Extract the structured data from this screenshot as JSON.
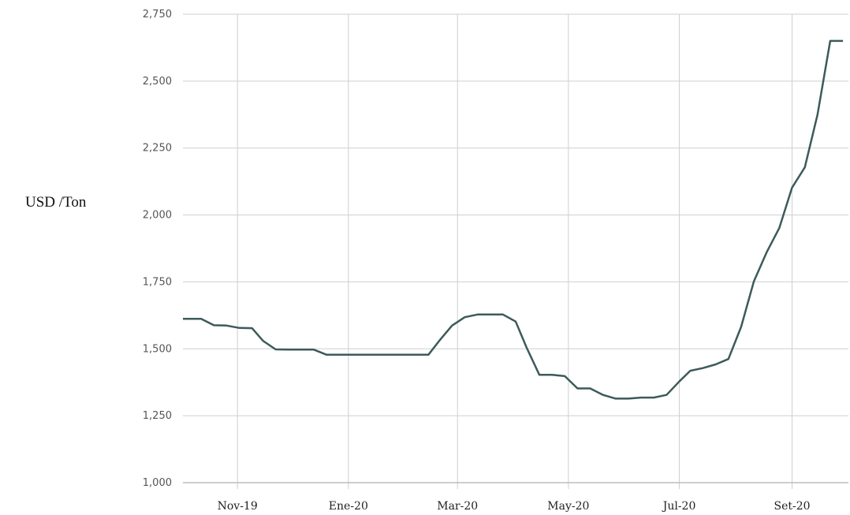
{
  "chart_data": {
    "type": "line",
    "ylabel": "USD /Ton",
    "xlabel": "",
    "title": "",
    "ylim": [
      1000,
      2750
    ],
    "yticks": [
      1000,
      1250,
      1500,
      1750,
      2000,
      2250,
      2500,
      2750
    ],
    "ytick_labels": [
      "1,000",
      "1,250",
      "1,500",
      "1,750",
      "2,000",
      "2,250",
      "2,500",
      "2,750"
    ],
    "xlim": [
      "2019-10-02",
      "2020-10-02"
    ],
    "xticks": [
      {
        "date": "2019-11-01",
        "label": "Nov-19"
      },
      {
        "date": "2020-01-01",
        "label": "Ene-20"
      },
      {
        "date": "2020-03-01",
        "label": "Mar-20"
      },
      {
        "date": "2020-05-01",
        "label": "May-20"
      },
      {
        "date": "2020-07-01",
        "label": "Jul-20"
      },
      {
        "date": "2020-09-01",
        "label": "Set-20"
      }
    ],
    "grid": true,
    "line_color": "#3d5a5a",
    "series": [
      {
        "points": [
          [
            "2019-10-02",
            1612
          ],
          [
            "2019-10-12",
            1612
          ],
          [
            "2019-10-19",
            1588
          ],
          [
            "2019-10-26",
            1587
          ],
          [
            "2019-11-02",
            1578
          ],
          [
            "2019-11-09",
            1577
          ],
          [
            "2019-11-15",
            1530
          ],
          [
            "2019-11-22",
            1498
          ],
          [
            "2019-11-29",
            1497
          ],
          [
            "2019-12-06",
            1497
          ],
          [
            "2019-12-13",
            1497
          ],
          [
            "2019-12-20",
            1478
          ],
          [
            "2019-12-27",
            1478
          ],
          [
            "2020-01-03",
            1478
          ],
          [
            "2020-01-10",
            1478
          ],
          [
            "2020-01-17",
            1478
          ],
          [
            "2020-01-24",
            1478
          ],
          [
            "2020-01-31",
            1478
          ],
          [
            "2020-02-07",
            1478
          ],
          [
            "2020-02-14",
            1478
          ],
          [
            "2020-02-20",
            1530
          ],
          [
            "2020-02-27",
            1587
          ],
          [
            "2020-03-05",
            1618
          ],
          [
            "2020-03-12",
            1628
          ],
          [
            "2020-03-19",
            1628
          ],
          [
            "2020-03-26",
            1628
          ],
          [
            "2020-04-02",
            1602
          ],
          [
            "2020-04-08",
            1505
          ],
          [
            "2020-04-15",
            1403
          ],
          [
            "2020-04-22",
            1403
          ],
          [
            "2020-04-29",
            1398
          ],
          [
            "2020-05-06",
            1352
          ],
          [
            "2020-05-13",
            1352
          ],
          [
            "2020-05-20",
            1328
          ],
          [
            "2020-05-27",
            1314
          ],
          [
            "2020-06-03",
            1314
          ],
          [
            "2020-06-10",
            1318
          ],
          [
            "2020-06-17",
            1318
          ],
          [
            "2020-06-24",
            1328
          ],
          [
            "2020-07-01",
            1378
          ],
          [
            "2020-07-07",
            1418
          ],
          [
            "2020-07-14",
            1428
          ],
          [
            "2020-07-21",
            1442
          ],
          [
            "2020-07-28",
            1462
          ],
          [
            "2020-08-04",
            1582
          ],
          [
            "2020-08-11",
            1752
          ],
          [
            "2020-08-18",
            1860
          ],
          [
            "2020-08-25",
            1952
          ],
          [
            "2020-09-01",
            2102
          ],
          [
            "2020-09-08",
            2178
          ],
          [
            "2020-09-15",
            2375
          ],
          [
            "2020-09-22",
            2650
          ],
          [
            "2020-09-29",
            2650
          ]
        ]
      }
    ]
  }
}
